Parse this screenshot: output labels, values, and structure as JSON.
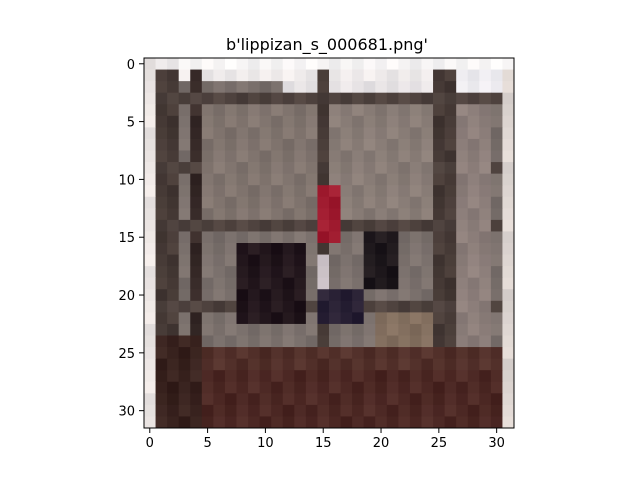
{
  "figure": {
    "title": "b'lippizan_s_000681.png'"
  },
  "image": {
    "rows": 32,
    "cols": 32,
    "description_colors": {
      "frame_top_light": "#f3eeee",
      "wall_gray": "#7a6e6a",
      "beam_dark": "#3a2c29",
      "floor_brown": "#4a2e28",
      "figure_dark": "#1e141c",
      "accent_red": "#9e1a2e",
      "edge_pale": "#ded6d2"
    }
  },
  "axes": {
    "x_ticks": [
      "0",
      "5",
      "10",
      "15",
      "20",
      "25",
      "30"
    ],
    "y_ticks": [
      "0",
      "5",
      "10",
      "15",
      "20",
      "25",
      "30"
    ],
    "x_range": [
      -0.5,
      31.5
    ],
    "y_range": [
      -0.5,
      31.5
    ]
  }
}
